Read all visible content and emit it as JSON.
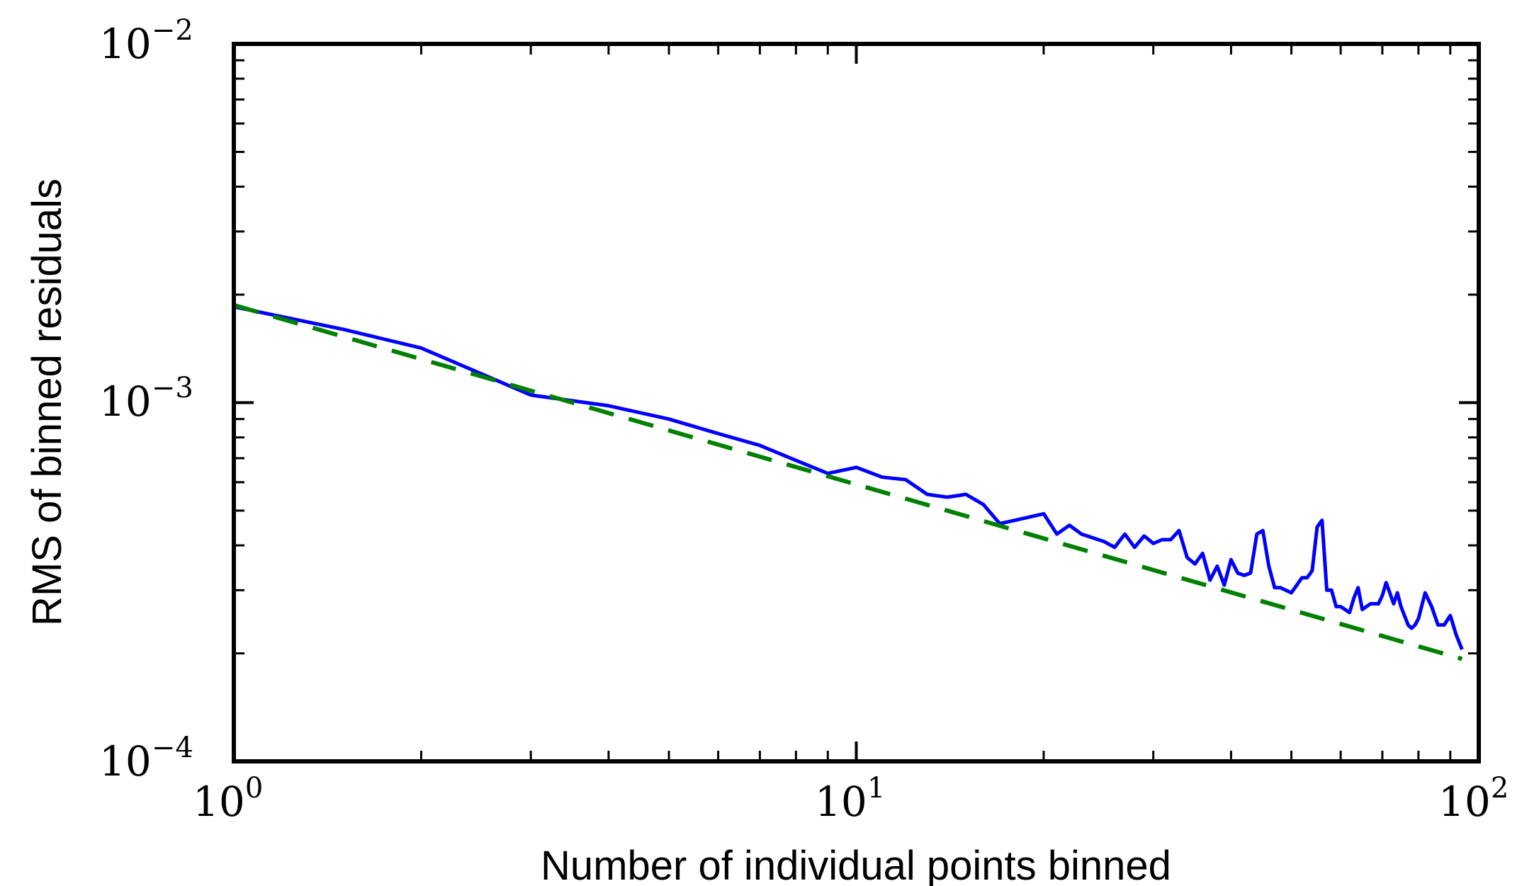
{
  "chart_data": {
    "type": "line",
    "title": "",
    "xlabel": "Number of individual points binned",
    "ylabel": "RMS of binned residuals",
    "xscale": "log",
    "yscale": "log",
    "xlim": [
      1,
      100
    ],
    "ylim": [
      0.0001,
      0.01
    ],
    "grid": false,
    "x_ticks": [
      {
        "base": "10",
        "exp": "0"
      },
      {
        "base": "10",
        "exp": "1"
      },
      {
        "base": "10",
        "exp": "2"
      }
    ],
    "y_ticks": [
      {
        "base": "10",
        "exp": "−4"
      },
      {
        "base": "10",
        "exp": "−3"
      },
      {
        "base": "10",
        "exp": "−2"
      }
    ],
    "series": [
      {
        "color": "#0000ff",
        "style": "solid",
        "x": [
          1,
          1.5,
          2,
          3,
          4,
          5,
          6,
          7,
          8,
          9,
          10,
          11,
          12,
          13,
          14,
          15,
          16,
          17,
          18,
          20,
          21,
          22,
          23,
          25,
          26,
          27,
          28,
          29,
          30,
          31,
          32,
          33,
          34,
          35,
          36,
          37,
          38,
          39,
          40,
          41,
          42,
          43,
          44,
          45,
          46,
          47,
          48,
          50,
          52,
          53,
          54,
          55,
          56,
          57,
          58,
          59,
          60,
          62,
          63,
          64,
          65,
          67,
          69,
          70,
          71,
          73,
          74,
          75,
          77,
          78,
          79,
          80,
          82,
          84,
          86,
          88,
          90,
          92,
          94
        ],
        "y": [
          0.00185,
          0.0016,
          0.00142,
          0.00105,
          0.00098,
          0.0009,
          0.00082,
          0.00076,
          0.00069,
          0.000635,
          0.00066,
          0.00062,
          0.00061,
          0.000555,
          0.000545,
          0.000555,
          0.00052,
          0.00046,
          0.00047,
          0.00049,
          0.00043,
          0.000455,
          0.00043,
          0.00041,
          0.000395,
          0.00043,
          0.000395,
          0.000425,
          0.000405,
          0.000415,
          0.000415,
          0.00044,
          0.00037,
          0.000355,
          0.00038,
          0.00032,
          0.00035,
          0.00031,
          0.000365,
          0.000335,
          0.00033,
          0.000335,
          0.00043,
          0.00044,
          0.00035,
          0.000305,
          0.000305,
          0.000295,
          0.000325,
          0.000325,
          0.00034,
          0.00045,
          0.00047,
          0.0003,
          0.0003,
          0.00027,
          0.00027,
          0.00026,
          0.000285,
          0.000305,
          0.000265,
          0.000275,
          0.000275,
          0.00029,
          0.000315,
          0.000275,
          0.000295,
          0.00027,
          0.00024,
          0.000235,
          0.00024,
          0.00025,
          0.000295,
          0.00027,
          0.00024,
          0.00024,
          0.000255,
          0.000225,
          0.000205
        ]
      },
      {
        "color": "#008000",
        "style": "dashed",
        "x": [
          1,
          94
        ],
        "y": [
          0.00187,
          0.000193
        ]
      }
    ]
  }
}
